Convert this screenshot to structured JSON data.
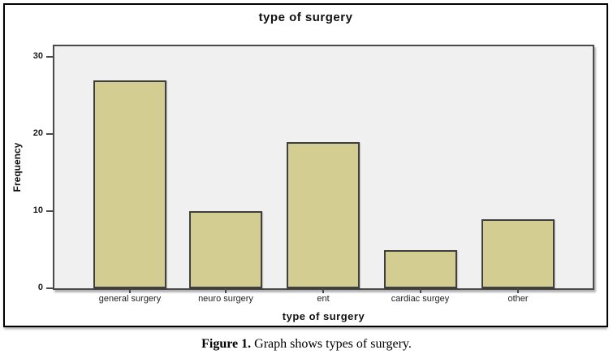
{
  "figure": {
    "chart_title": "type of surgery",
    "y_axis_label": "Frequency",
    "x_axis_label": "type of surgery",
    "caption_label": "Figure 1.",
    "caption_text": " Graph shows types of surgery."
  },
  "chart_data": {
    "type": "bar",
    "title": "type of surgery",
    "categories": [
      "general surgery",
      "neuro surgery",
      "ent",
      "cardiac surgey",
      "other"
    ],
    "values": [
      27,
      10,
      19,
      5,
      9
    ],
    "xlabel": "type of surgery",
    "ylabel": "Frequency",
    "ylim": [
      0,
      31.4
    ],
    "yticks": [
      0,
      10,
      20,
      30
    ],
    "grid": false,
    "legend": "none",
    "bar_color": "#d3cd92",
    "bar_border_color": "#3f3f3f",
    "plot_background": "#f0f0f0",
    "frame_color": "#4a4a4a"
  }
}
